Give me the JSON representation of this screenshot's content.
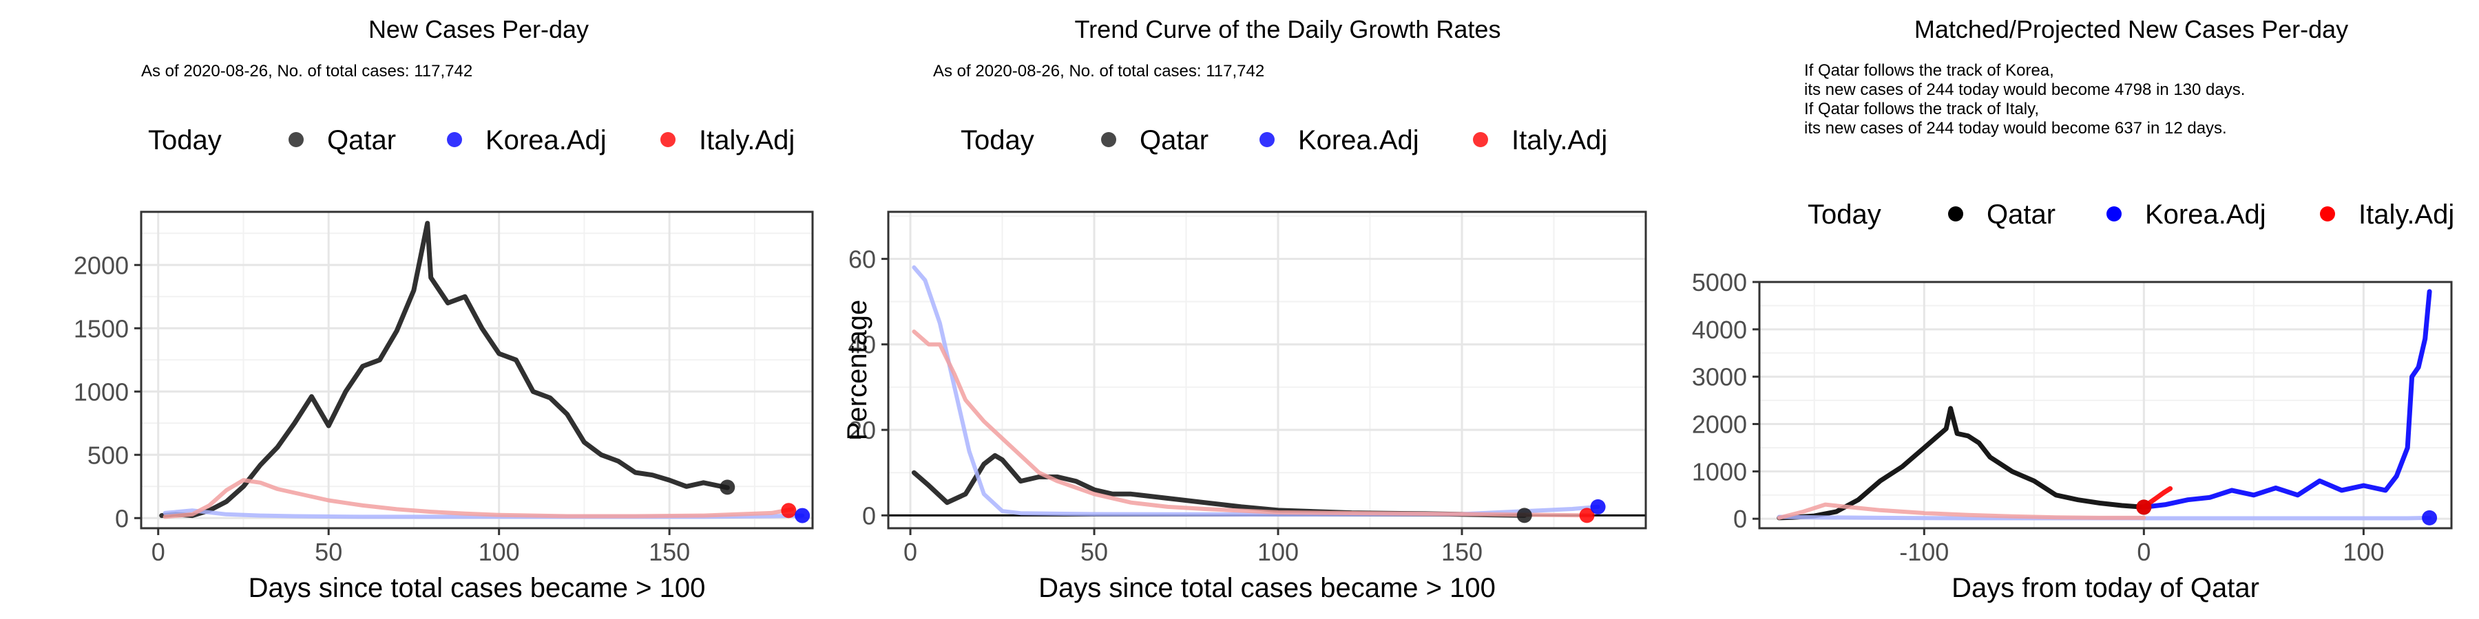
{
  "chart_data": [
    {
      "type": "line",
      "title": "New Cases Per-day",
      "subtitle": "As of 2020-08-26, No. of total cases: 117,742",
      "xlabel": "Days since total cases became > 100",
      "ylabel": "",
      "xlim": [
        -5,
        192
      ],
      "ylim": [
        -80,
        2420
      ],
      "xticks": [
        0,
        50,
        100,
        150
      ],
      "xtick_labels": [
        "0",
        "50",
        "100",
        "150"
      ],
      "yticks": [
        0,
        500,
        1000,
        1500,
        2000
      ],
      "ytick_labels": [
        "0",
        "500",
        "1000",
        "1500",
        "2000"
      ],
      "grid": true,
      "legend": {
        "title": "Today",
        "position": "top",
        "items": [
          "Qatar",
          "Korea.Adj",
          "Italy.Adj"
        ]
      },
      "series": [
        {
          "name": "Qatar",
          "color": "#1a1a1a",
          "x": [
            1,
            5,
            10,
            15,
            20,
            25,
            30,
            35,
            40,
            45,
            50,
            55,
            60,
            65,
            70,
            75,
            79,
            80,
            85,
            90,
            95,
            100,
            105,
            110,
            115,
            120,
            125,
            130,
            135,
            140,
            145,
            150,
            155,
            160,
            167
          ],
          "y": [
            20,
            30,
            20,
            60,
            130,
            250,
            420,
            560,
            750,
            960,
            730,
            1000,
            1200,
            1250,
            1480,
            1800,
            2330,
            1900,
            1700,
            1750,
            1500,
            1300,
            1250,
            1000,
            950,
            820,
            600,
            500,
            450,
            360,
            340,
            300,
            250,
            280,
            240
          ]
        },
        {
          "name": "Korea.Adj",
          "color": "#aab4ff",
          "x": [
            2,
            10,
            20,
            30,
            40,
            60,
            80,
            100,
            120,
            140,
            160,
            180,
            189
          ],
          "y": [
            40,
            60,
            30,
            20,
            15,
            10,
            10,
            10,
            10,
            10,
            10,
            15,
            20
          ]
        },
        {
          "name": "Italy.Adj",
          "color": "#f2a0a0",
          "x": [
            2,
            10,
            15,
            20,
            25,
            30,
            35,
            40,
            45,
            50,
            60,
            70,
            80,
            90,
            100,
            120,
            140,
            160,
            180,
            186
          ],
          "y": [
            10,
            30,
            100,
            220,
            300,
            280,
            230,
            200,
            170,
            140,
            100,
            70,
            50,
            35,
            25,
            15,
            15,
            20,
            40,
            70
          ]
        }
      ],
      "today_points": [
        {
          "name": "Qatar",
          "x": 167,
          "y": 244,
          "color": "#1a1a1a"
        },
        {
          "name": "Italy.Adj",
          "x": 185,
          "y": 60,
          "color": "#ff0000"
        },
        {
          "name": "Korea.Adj",
          "x": 189,
          "y": 20,
          "color": "#0000ff"
        }
      ]
    },
    {
      "type": "line",
      "title": "Trend Curve of the Daily Growth Rates",
      "subtitle": "As of 2020-08-26, No. of total cases: 117,742",
      "xlabel": "Days since total cases became > 100",
      "ylabel": "Percentage",
      "xlim": [
        -6,
        200
      ],
      "ylim": [
        -3,
        71
      ],
      "xticks": [
        0,
        50,
        100,
        150
      ],
      "xtick_labels": [
        "0",
        "50",
        "100",
        "150"
      ],
      "yticks": [
        0,
        20,
        40,
        60
      ],
      "ytick_labels": [
        "0",
        "20",
        "40",
        "60"
      ],
      "hline": 0,
      "grid": true,
      "legend": {
        "title": "Today",
        "position": "top",
        "items": [
          "Qatar",
          "Korea.Adj",
          "Italy.Adj"
        ]
      },
      "series": [
        {
          "name": "Qatar",
          "color": "#1a1a1a",
          "x": [
            1,
            5,
            10,
            15,
            20,
            23,
            25,
            28,
            30,
            35,
            40,
            45,
            50,
            55,
            60,
            70,
            80,
            90,
            100,
            120,
            140,
            167
          ],
          "y": [
            10,
            7,
            3,
            5,
            12,
            14,
            13,
            10,
            8,
            9,
            9,
            8,
            6,
            5,
            5,
            4,
            3,
            2,
            1.2,
            0.6,
            0.4,
            0
          ]
        },
        {
          "name": "Korea.Adj",
          "color": "#aab4ff",
          "x": [
            1,
            4,
            8,
            12,
            16,
            20,
            25,
            30,
            50,
            100,
            150,
            180,
            187
          ],
          "y": [
            58,
            55,
            45,
            30,
            15,
            5,
            1,
            0.5,
            0.3,
            0.2,
            0.3,
            1.5,
            2
          ]
        },
        {
          "name": "Italy.Adj",
          "color": "#f2a0a0",
          "x": [
            1,
            5,
            8,
            12,
            15,
            20,
            25,
            30,
            35,
            40,
            50,
            60,
            70,
            80,
            100,
            150,
            185
          ],
          "y": [
            43,
            40,
            40,
            33,
            27,
            22,
            18,
            14,
            10,
            8,
            5,
            3,
            2,
            1.5,
            0.7,
            0.3,
            0
          ]
        }
      ],
      "today_points": [
        {
          "name": "Qatar",
          "x": 167,
          "y": 0,
          "color": "#1a1a1a"
        },
        {
          "name": "Italy.Adj",
          "x": 184,
          "y": 0,
          "color": "#ff0000"
        },
        {
          "name": "Korea.Adj",
          "x": 187,
          "y": 2,
          "color": "#0000ff"
        }
      ]
    },
    {
      "type": "line",
      "title": "Matched/Projected New Cases Per-day",
      "annotations": [
        "If Qatar follows the track of Korea,",
        "its new cases of 244 today would become 4798 in 130 days.",
        "If Qatar follows the track of Italy,",
        "its new cases of 244 today would become 637 in 12 days."
      ],
      "xlabel": "Days from today of Qatar",
      "ylabel": "",
      "xlim": [
        -175,
        140
      ],
      "ylim": [
        -200,
        5000
      ],
      "xticks": [
        -100,
        0,
        100
      ],
      "xtick_labels": [
        "-100",
        "0",
        "100"
      ],
      "yticks": [
        0,
        1000,
        2000,
        3000,
        4000,
        5000
      ],
      "ytick_labels": [
        "0",
        "1000",
        "2000",
        "3000",
        "4000",
        "5000"
      ],
      "grid": true,
      "legend": {
        "title": "Today",
        "position": "top",
        "items": [
          "Qatar",
          "Korea.Adj",
          "Italy.Adj"
        ]
      },
      "series": [
        {
          "name": "Qatar",
          "color": "#000000",
          "x": [
            -166,
            -160,
            -150,
            -140,
            -130,
            -120,
            -110,
            -100,
            -95,
            -90,
            -88,
            -85,
            -80,
            -75,
            -70,
            -60,
            -50,
            -40,
            -30,
            -20,
            -10,
            0
          ],
          "y": [
            20,
            30,
            60,
            150,
            400,
            800,
            1100,
            1500,
            1700,
            1900,
            2330,
            1800,
            1750,
            1600,
            1300,
            1000,
            800,
            500,
            400,
            330,
            280,
            244
          ]
        },
        {
          "name": "Korea.Adj (history)",
          "color": "#aab4ff",
          "x": [
            -166,
            -150,
            -120,
            -80,
            -40,
            0,
            40,
            80,
            120,
            130
          ],
          "y": [
            40,
            30,
            20,
            10,
            10,
            10,
            10,
            10,
            10,
            20
          ]
        },
        {
          "name": "Italy.Adj (history)",
          "color": "#f2a0a0",
          "x": [
            -166,
            -155,
            -145,
            -135,
            -120,
            -100,
            -80,
            -60,
            -40,
            -20,
            0
          ],
          "y": [
            20,
            150,
            300,
            250,
            180,
            120,
            80,
            50,
            30,
            20,
            20
          ]
        },
        {
          "name": "Korea.Adj",
          "color": "#0000ff",
          "x": [
            0,
            10,
            20,
            30,
            40,
            50,
            60,
            70,
            80,
            90,
            100,
            110,
            115,
            120,
            122,
            125,
            128,
            130
          ],
          "y": [
            244,
            300,
            400,
            450,
            600,
            500,
            650,
            500,
            800,
            600,
            700,
            600,
            900,
            1500,
            3000,
            3200,
            3800,
            4798
          ]
        },
        {
          "name": "Italy.Adj",
          "color": "#ff0000",
          "x": [
            0,
            3,
            6,
            9,
            12
          ],
          "y": [
            244,
            350,
            450,
            550,
            637
          ]
        }
      ],
      "today_points": [
        {
          "name": "Qatar",
          "x": 0,
          "y": 244,
          "color": "#000000"
        },
        {
          "name": "Italy.Adj",
          "x": 0,
          "y": 244,
          "color": "#ff0000"
        },
        {
          "name": "Korea.Adj",
          "x": 130,
          "y": 20,
          "color": "#0000ff"
        }
      ]
    }
  ]
}
